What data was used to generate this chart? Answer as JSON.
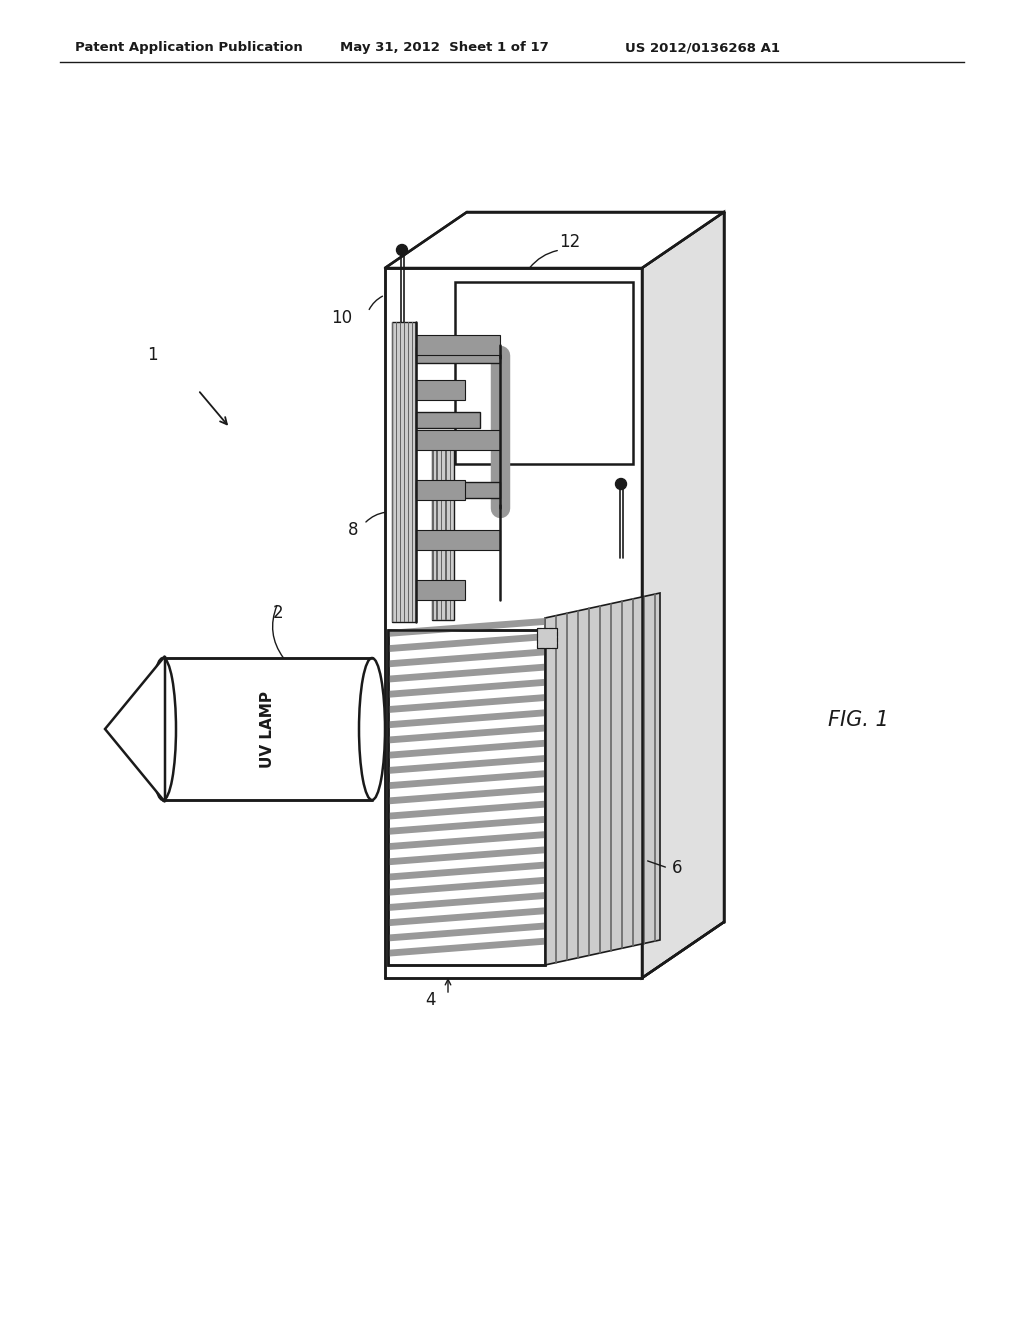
{
  "header_left": "Patent Application Publication",
  "header_mid": "May 31, 2012  Sheet 1 of 17",
  "header_right": "US 2012/0136268 A1",
  "fig_label": "FIG. 1",
  "label_1": "1",
  "label_2": "2",
  "label_4": "4",
  "label_6": "6",
  "label_8": "8",
  "label_10": "10",
  "label_12": "12",
  "uv_lamp_text": "UV LAMP",
  "bg_color": "#ffffff",
  "line_color": "#1a1a1a",
  "gray_light": "#cccccc",
  "gray_med": "#999999",
  "gray_dark": "#666666",
  "gray_side": "#e0e0e0"
}
